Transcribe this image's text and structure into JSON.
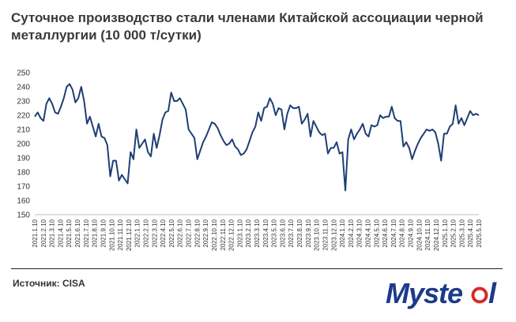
{
  "title": "Суточное производство стали членами Китайской ассоциации черной металлургии (10 000 т/сутки)",
  "source": "Источник: CISA",
  "logo_text": "Mysteel",
  "colors": {
    "line": "#1f3f73",
    "logo": "#1d3a8a",
    "logo_accent": "#d62b2b",
    "text": "#3a3a3a"
  },
  "chart_data": {
    "type": "line",
    "title": "Суточное производство стали членами Китайской ассоциации черной металлургии (10 000 т/сутки)",
    "xlabel": "",
    "ylabel": "",
    "ylim": [
      150,
      250
    ],
    "yticks": [
      150,
      160,
      170,
      180,
      190,
      200,
      210,
      220,
      230,
      240,
      250
    ],
    "grid": false,
    "legend": "none",
    "x_tick_labels": [
      "2021.1.10",
      "2021.2.10",
      "2021.3.10",
      "2021.4.10",
      "2021.5.10",
      "2021.6.10",
      "2021.7.10",
      "2021.8.10",
      "2021.9.10",
      "2021.10.10",
      "2021.11.10",
      "2021.12.10",
      "2022.1.10",
      "2022.2.10",
      "2022.3.10",
      "2022.4.10",
      "2022.5.10",
      "2022.6.10",
      "2022.7.10",
      "2022.8.10",
      "2022.9.10",
      "2022.10.10",
      "2022.11.10",
      "2022.12.10",
      "2023.1.10",
      "2023.2.10",
      "2023.3.10",
      "2023.4.10",
      "2023.5.10",
      "2023.6.10",
      "2023.7.10",
      "2023.8.10",
      "2023.9.10",
      "2023.10.10",
      "2023.11.10",
      "2023.12.10",
      "2024.1.10",
      "2024.2.10",
      "2024.3.10",
      "2024.4.10",
      "2024.5.10",
      "2024.6.10",
      "2024.7.10",
      "2024.8.10",
      "2024.9.10",
      "2024.10.10",
      "2024.11.10",
      "2024.12.10",
      "2025.1.10",
      "2025.2.10",
      "2025.3.10",
      "2025.4.10",
      "2025.5.10"
    ],
    "series": [
      {
        "values": [
          219,
          222,
          218,
          216,
          228,
          232,
          228,
          222,
          221,
          226,
          232,
          240,
          242,
          238,
          229,
          232,
          240,
          230,
          214,
          219,
          212,
          205,
          214,
          205,
          204,
          199,
          177,
          188,
          188,
          174,
          178,
          175,
          172,
          194,
          189,
          210,
          197,
          200,
          203,
          194,
          191,
          207,
          197,
          206,
          217,
          222,
          223,
          236,
          230,
          230,
          232,
          228,
          224,
          210,
          207,
          204,
          189,
          195,
          201,
          205,
          210,
          215,
          214,
          211,
          206,
          202,
          199,
          200,
          203,
          198,
          196,
          192,
          193,
          196,
          202,
          208,
          212,
          222,
          216,
          225,
          226,
          232,
          228,
          220,
          225,
          224,
          210,
          221,
          227,
          225,
          225,
          226,
          214,
          217,
          221,
          205,
          216,
          212,
          208,
          206,
          207,
          193,
          197,
          197,
          201,
          193,
          194,
          167,
          203,
          210,
          203,
          207,
          210,
          214,
          207,
          205,
          213,
          212,
          213,
          220,
          218,
          219,
          219,
          226,
          218,
          216,
          216,
          198,
          201,
          197,
          189,
          195,
          200,
          204,
          207,
          210,
          209,
          210,
          208,
          200,
          188,
          207,
          207,
          212,
          214,
          227,
          214,
          218,
          213,
          218,
          223,
          220,
          221,
          220
        ]
      }
    ]
  }
}
